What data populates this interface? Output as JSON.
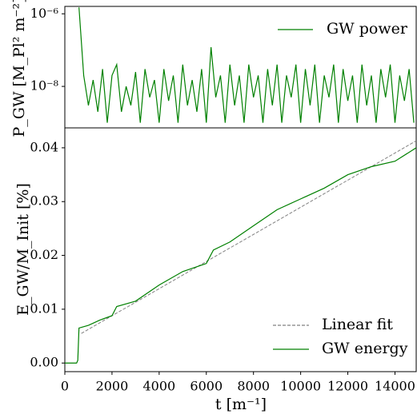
{
  "chart_data": [
    {
      "type": "line",
      "log_y": true,
      "ylabel": "P_GW [M_Pl² m⁻²]",
      "legend": "upper right",
      "x": [
        0,
        200,
        400,
        600,
        800,
        1000,
        1200,
        1400,
        1600,
        1800,
        2000,
        2200,
        2400,
        2600,
        2800,
        3000,
        3200,
        3400,
        3600,
        3800,
        4000,
        4200,
        4400,
        4600,
        4800,
        5000,
        5200,
        5400,
        5600,
        5800,
        6000,
        6200,
        6400,
        6600,
        6800,
        7000,
        7200,
        7400,
        7600,
        7800,
        8000,
        8200,
        8400,
        8600,
        8800,
        9000,
        9200,
        9400,
        9600,
        9800,
        10000,
        10200,
        10400,
        10600,
        10800,
        11000,
        11200,
        11400,
        11600,
        11800,
        12000,
        12200,
        12400,
        12600,
        12800,
        13000,
        13200,
        13400,
        13600,
        13800,
        14000,
        14200,
        14400,
        14600,
        14800
      ],
      "series": [
        {
          "name": "GW power",
          "color": "#008000",
          "values": [
            null,
            null,
            null,
            1.5e-06,
            2e-08,
            3e-09,
            1.5e-08,
            2e-09,
            3e-08,
            1e-09,
            2e-08,
            4e-08,
            2e-09,
            1e-08,
            3e-09,
            2.5e-08,
            1e-09,
            3e-08,
            5e-09,
            1.5e-08,
            1e-09,
            3e-08,
            4e-09,
            2e-08,
            1e-09,
            4e-08,
            3e-09,
            1.5e-08,
            2e-09,
            3e-08,
            1e-09,
            1.2e-07,
            5e-09,
            2e-08,
            1e-09,
            4e-08,
            3e-09,
            2e-08,
            1e-09,
            4e-08,
            5e-09,
            2e-08,
            1e-09,
            3e-08,
            3e-09,
            4e-08,
            1e-09,
            2e-08,
            5e-09,
            4e-08,
            1e-09,
            3e-08,
            3e-09,
            4e-08,
            1e-09,
            2e-08,
            5e-09,
            4e-08,
            1e-09,
            3e-08,
            4e-09,
            2e-08,
            1e-09,
            4e-08,
            3e-09,
            2e-08,
            1e-09,
            3e-08,
            5e-09,
            4e-08,
            1e-09,
            2e-08,
            4e-09,
            3e-08,
            1e-09
          ]
        }
      ],
      "xlim": [
        0,
        14900
      ],
      "ylim": [
        7.2e-10,
        1.6e-06
      ],
      "yticks": [
        {
          "value": 1e-08,
          "label": "10⁻⁸"
        },
        {
          "value": 1e-06,
          "label": "10⁻⁶"
        }
      ]
    },
    {
      "type": "line",
      "xlabel": "t [m⁻¹]",
      "ylabel": "E_GW/M_Init [%]",
      "legend": "lower right",
      "series": [
        {
          "name": "Linear fit",
          "color": "#808080",
          "dashed": true,
          "x": [
            700,
            14900
          ],
          "values": [
            0.0055,
            0.0413
          ]
        },
        {
          "name": "GW energy",
          "color": "#008000",
          "x": [
            0,
            500,
            550,
            600,
            1000,
            1500,
            2000,
            2200,
            3000,
            4000,
            5000,
            6000,
            6300,
            7000,
            8000,
            9000,
            10000,
            11000,
            12000,
            13000,
            14000,
            14900
          ],
          "values": [
            0,
            0,
            0.0005,
            0.0065,
            0.007,
            0.008,
            0.0088,
            0.0105,
            0.0115,
            0.0145,
            0.017,
            0.0185,
            0.021,
            0.0225,
            0.0255,
            0.0285,
            0.0305,
            0.0325,
            0.035,
            0.0365,
            0.0375,
            0.04
          ]
        }
      ],
      "xlim": [
        0,
        14900
      ],
      "ylim": [
        -0.0016,
        0.0437
      ],
      "xticks": [
        0,
        2000,
        4000,
        6000,
        8000,
        10000,
        12000,
        14000
      ],
      "yticks": [
        {
          "value": 0,
          "label": "0.00"
        },
        {
          "value": 0.01,
          "label": "0.01"
        },
        {
          "value": 0.02,
          "label": "0.02"
        },
        {
          "value": 0.03,
          "label": "0.03"
        },
        {
          "value": 0.04,
          "label": "0.04"
        }
      ]
    }
  ]
}
